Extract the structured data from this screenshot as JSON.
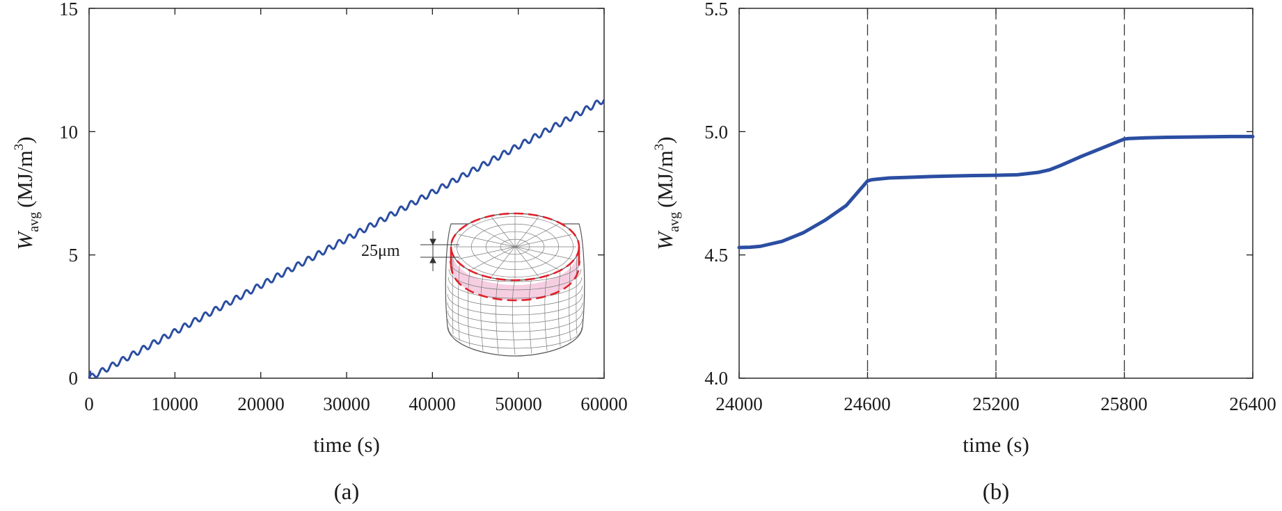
{
  "chart_data": [
    {
      "type": "line",
      "panel_label": "(a)",
      "xlabel": "time (s)",
      "ylabel": {
        "symbol": "W",
        "subscript": "avg",
        "units": "(MJ/m",
        "units_sup": "3",
        "units_close": ")"
      },
      "xlim": [
        0,
        60000
      ],
      "ylim": [
        0,
        15
      ],
      "xticks": [
        0,
        10000,
        20000,
        30000,
        40000,
        50000,
        60000
      ],
      "yticks": [
        0,
        5,
        10,
        15
      ],
      "series_color": "#2b4ea2",
      "series": [
        {
          "name": "W_avg",
          "description": "staircase growth, one step per 1200 s cycle",
          "x_start": 0,
          "x_end": 60000,
          "y_start": 0,
          "y_end": 11.3,
          "step_period": 1200
        }
      ],
      "inset": {
        "dimension_label": "25μm",
        "highlight_color": "#e0202a"
      }
    },
    {
      "type": "line",
      "panel_label": "(b)",
      "xlabel": "time (s)",
      "ylabel": {
        "symbol": "W",
        "subscript": "avg",
        "units": "(MJ/m",
        "units_sup": "3",
        "units_close": ")"
      },
      "xlim": [
        24000,
        26400
      ],
      "ylim": [
        4.0,
        5.5
      ],
      "xticks": [
        24000,
        24600,
        25200,
        25800,
        26400
      ],
      "ytick_labels": [
        "4.0",
        "4.5",
        "5.0",
        "5.5"
      ],
      "yticks": [
        4.0,
        4.5,
        5.0,
        5.5
      ],
      "vlines": [
        24600,
        25200,
        25800
      ],
      "series_color": "#2b4ea2",
      "series": [
        {
          "name": "W_avg",
          "x": [
            24000,
            24050,
            24100,
            24200,
            24300,
            24400,
            24500,
            24600,
            24620,
            24700,
            24800,
            24900,
            25000,
            25100,
            25200,
            25300,
            25400,
            25450,
            25500,
            25600,
            25700,
            25800,
            25820,
            25900,
            26000,
            26100,
            26200,
            26300,
            26400
          ],
          "y": [
            4.53,
            4.531,
            4.535,
            4.555,
            4.59,
            4.64,
            4.7,
            4.8,
            4.805,
            4.812,
            4.815,
            4.818,
            4.82,
            4.822,
            4.823,
            4.825,
            4.835,
            4.845,
            4.862,
            4.9,
            4.935,
            4.97,
            4.972,
            4.975,
            4.977,
            4.978,
            4.979,
            4.98,
            4.98
          ]
        }
      ]
    }
  ]
}
